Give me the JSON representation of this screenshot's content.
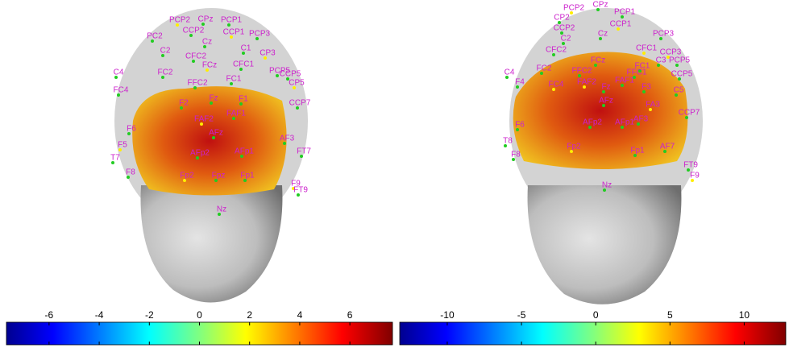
{
  "chart_data": [
    {
      "type": "colorbar",
      "xlim": [
        -7.7,
        7.7
      ],
      "xticks": [
        -6,
        -4,
        -2,
        0,
        2,
        4,
        6
      ],
      "electrode_labels": [
        "PCP2",
        "CPz",
        "PCP1",
        "PCP3",
        "CCP2",
        "CCP1",
        "Cz",
        "PC2",
        "C2",
        "C1",
        "CP3",
        "PCP5",
        "CFC2",
        "CFC1",
        "FC2",
        "FCz",
        "FC1",
        "C4",
        "FC4",
        "FFC2",
        "CP5",
        "CCP5",
        "F2",
        "Fz",
        "F1",
        "FAF2",
        "FAF1",
        "AFz",
        "AFp2",
        "AFp1",
        "Fp2",
        "Fpz",
        "Fp1",
        "AF3",
        "F6",
        "F5",
        "F8",
        "T7",
        "FT7",
        "CCP7",
        "F9",
        "FT9",
        "Nz"
      ]
    },
    {
      "type": "colorbar",
      "xlim": [
        -13.2,
        12.8
      ],
      "xticks": [
        -10,
        -5,
        0,
        5,
        10
      ],
      "electrode_labels": [
        "PCP2",
        "CPz",
        "PCP1",
        "CP2",
        "CCP2",
        "CCP1",
        "PCP3",
        "C2",
        "Cz",
        "CFC2",
        "CFC1",
        "C3",
        "FC2",
        "FCz",
        "FC1",
        "CCP3",
        "PCP5",
        "FFC2",
        "FFC1",
        "CCP5",
        "FC4",
        "C4",
        "C5",
        "Fz",
        "F4",
        "FAF2",
        "FAF1",
        "F3",
        "CCP7",
        "AFz",
        "FA3",
        "AF3",
        "F6",
        "AFp2",
        "AFp1",
        "Fp2",
        "Fp1",
        "AF7",
        "F8",
        "FT9",
        "F9",
        "T8",
        "Nz"
      ]
    }
  ]
}
